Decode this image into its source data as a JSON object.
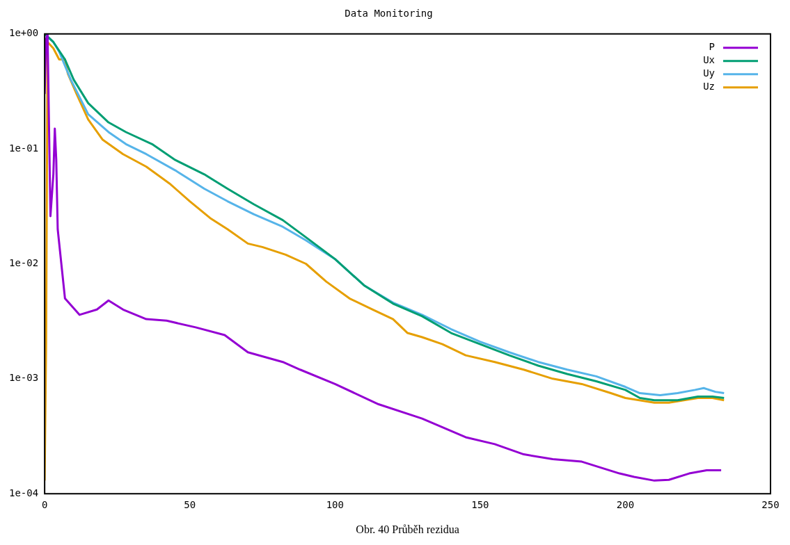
{
  "chart_data": {
    "type": "line",
    "title": "Data Monitoring",
    "annotations": [
      "Obr. 40 Průběh rezidua"
    ],
    "xlim": [
      0,
      250
    ],
    "xticks": [
      0,
      50,
      100,
      150,
      200,
      250
    ],
    "ylim": [
      0.0001,
      1
    ],
    "yticks": [
      {
        "value": 0.0001,
        "label": "1e-04"
      },
      {
        "value": 0.001,
        "label": "1e-03"
      },
      {
        "value": 0.01,
        "label": "1e-02"
      },
      {
        "value": 0.1,
        "label": "1e-01"
      },
      {
        "value": 1,
        "label": "1e+00"
      }
    ],
    "log": "y",
    "grid": false,
    "legend": "top right",
    "marker": "none",
    "line_style": "solid",
    "series": [
      {
        "name": "P",
        "color": "#9400d3",
        "x": [
          0,
          0.5,
          1,
          2,
          3,
          3.5,
          4,
          4.5,
          7,
          12,
          18,
          22,
          27,
          35,
          42,
          52,
          62,
          70,
          82,
          88,
          100,
          115,
          130,
          145,
          155,
          165,
          175,
          185,
          198,
          203,
          210,
          215,
          222,
          228,
          233
        ],
        "values": [
          0.3,
          0.9,
          1,
          0.026,
          0.06,
          0.15,
          0.08,
          0.02,
          0.005,
          0.0036,
          0.004,
          0.0048,
          0.004,
          0.0033,
          0.0032,
          0.0028,
          0.0024,
          0.0017,
          0.0014,
          0.0012,
          0.0009,
          0.0006,
          0.00045,
          0.00031,
          0.00027,
          0.00022,
          0.0002,
          0.00019,
          0.00015,
          0.00014,
          0.00013,
          0.000132,
          0.00015,
          0.00016,
          0.00016
        ]
      },
      {
        "name": "Ux",
        "color": "#009e73",
        "x": [
          0,
          3,
          7,
          10,
          15,
          22,
          28,
          37,
          45,
          55,
          63,
          72,
          82,
          90,
          100,
          110,
          120,
          130,
          140,
          150,
          160,
          170,
          180,
          190,
          200,
          205,
          210,
          218,
          225,
          230,
          234
        ],
        "values": [
          1,
          0.85,
          0.6,
          0.4,
          0.25,
          0.17,
          0.14,
          0.11,
          0.08,
          0.06,
          0.045,
          0.033,
          0.024,
          0.017,
          0.011,
          0.0065,
          0.0045,
          0.0035,
          0.0025,
          0.002,
          0.0016,
          0.0013,
          0.0011,
          0.00095,
          0.0008,
          0.00068,
          0.00065,
          0.00065,
          0.0007,
          0.0007,
          0.00068
        ]
      },
      {
        "name": "Uy",
        "color": "#56b4e9",
        "x": [
          0,
          3,
          5,
          9,
          15,
          22,
          28,
          35,
          45,
          55,
          63,
          72,
          82,
          90,
          100,
          110,
          120,
          130,
          140,
          150,
          160,
          170,
          180,
          190,
          200,
          205,
          212,
          218,
          224,
          227,
          231,
          234
        ],
        "values": [
          1,
          0.85,
          0.7,
          0.4,
          0.2,
          0.14,
          0.11,
          0.09,
          0.065,
          0.045,
          0.035,
          0.027,
          0.021,
          0.016,
          0.011,
          0.0065,
          0.0046,
          0.0036,
          0.0027,
          0.0021,
          0.0017,
          0.0014,
          0.0012,
          0.00105,
          0.00085,
          0.00075,
          0.00072,
          0.00075,
          0.0008,
          0.00083,
          0.00077,
          0.00075
        ]
      },
      {
        "name": "Uz",
        "color": "#e69f00",
        "x": [
          0,
          0.5,
          1,
          3,
          5,
          7,
          8,
          11,
          15,
          20,
          27,
          35,
          43,
          50,
          57,
          63,
          70,
          75,
          83,
          90,
          97,
          105,
          113,
          120,
          125,
          130,
          137,
          145,
          155,
          165,
          175,
          185,
          195,
          200,
          210,
          215,
          225,
          230,
          234
        ],
        "values": [
          0.00013,
          0.002,
          0.85,
          0.75,
          0.6,
          0.6,
          0.45,
          0.3,
          0.18,
          0.12,
          0.09,
          0.07,
          0.05,
          0.035,
          0.025,
          0.02,
          0.015,
          0.014,
          0.012,
          0.01,
          0.007,
          0.005,
          0.004,
          0.0033,
          0.0025,
          0.0023,
          0.002,
          0.0016,
          0.0014,
          0.0012,
          0.001,
          0.0009,
          0.00075,
          0.00068,
          0.00062,
          0.00062,
          0.00068,
          0.00068,
          0.00065
        ]
      }
    ]
  }
}
